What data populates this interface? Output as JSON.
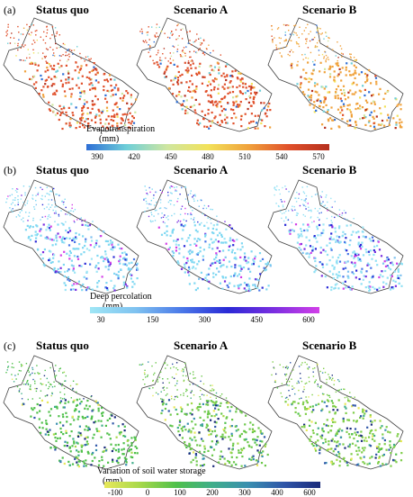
{
  "panels": [
    {
      "label": "(a)",
      "scenarios": [
        "Status quo",
        "Scenario A",
        "Scenario B"
      ],
      "legend_title": "Evapotranspiration",
      "legend_unit": "(mm)",
      "ticks": [
        "390",
        "420",
        "450",
        "480",
        "510",
        "540",
        "570"
      ],
      "colors": [
        "#2e6fd6",
        "#6fcfd8",
        "#cfe6a0",
        "#f2e25a",
        "#f0a23c",
        "#e0502b",
        "#b5301e"
      ],
      "dominant": [
        "#e0502b",
        "#e0502b",
        "#f0a23c"
      ]
    },
    {
      "label": "(b)",
      "scenarios": [
        "Status quo",
        "Scenario A",
        "Scenario B"
      ],
      "legend_title": "Deep percolation",
      "legend_unit": "(mm)",
      "ticks": [
        "30",
        "150",
        "300",
        "450",
        "600"
      ],
      "colors": [
        "#9fe6f5",
        "#7fc2f0",
        "#4a78e8",
        "#2a2ad6",
        "#7a2ee0",
        "#d23fe8"
      ],
      "dominant": [
        "#7fd8f2",
        "#7fd8f2",
        "#8fe0f4"
      ]
    },
    {
      "label": "(c)",
      "scenarios": [
        "Status quo",
        "Scenario A",
        "Scenario B"
      ],
      "legend_title": "Variation of soil water storage",
      "legend_unit": "(mm)",
      "ticks": [
        "-100",
        "0",
        "100",
        "200",
        "300",
        "400",
        "600"
      ],
      "colors": [
        "#e8e85a",
        "#a6d84a",
        "#4fc04a",
        "#3fae8a",
        "#3a8fb0",
        "#2f55a8",
        "#1a2a7a"
      ],
      "dominant": [
        "#4fc04a",
        "#6cc84a",
        "#7fce4a"
      ]
    }
  ]
}
